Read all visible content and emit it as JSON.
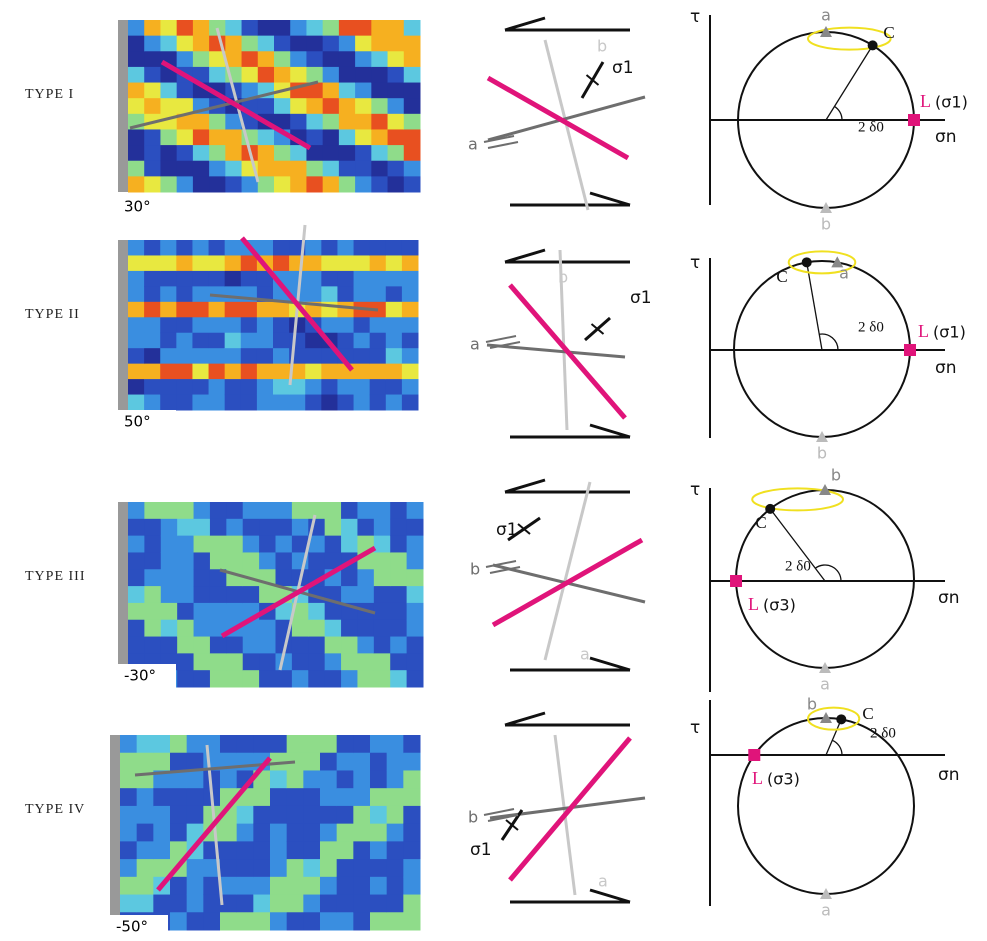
{
  "rows": [
    {
      "label": "TYPE I",
      "angle": "30°",
      "sketch": {
        "sigma": "σ1",
        "gray_label": "a",
        "light_label": "b"
      },
      "mohr": {
        "tau": "τ",
        "sigma_n": "σn",
        "c": "C",
        "top": "a",
        "bottom": "b",
        "angle": "2 δ0",
        "l": "L",
        "l_note": "(σ1)"
      }
    },
    {
      "label": "TYPE II",
      "angle": "50°",
      "sketch": {
        "sigma": "σ1",
        "gray_label": "a",
        "light_label": "b"
      },
      "mohr": {
        "tau": "τ",
        "sigma_n": "σn",
        "c": "C",
        "top": "a",
        "bottom": "b",
        "angle": "2 δ0",
        "l": "L",
        "l_note": "(σ1)"
      }
    },
    {
      "label": "TYPE III",
      "angle": "-30°",
      "sketch": {
        "sigma": "σ1",
        "gray_label": "b",
        "light_label": "a"
      },
      "mohr": {
        "tau": "τ",
        "sigma_n": "σn",
        "c": "C",
        "top": "b",
        "bottom": "a",
        "angle": "2 δ0",
        "l": "L",
        "l_note": "(σ3)"
      }
    },
    {
      "label": "TYPE IV",
      "angle": "-50°",
      "sketch": {
        "sigma": "σ1",
        "gray_label": "b",
        "light_label": "a"
      },
      "mohr": {
        "tau": "τ",
        "sigma_n": "σn",
        "c": "C",
        "top": "b",
        "bottom": "a",
        "angle": "2 δ0",
        "l": "L",
        "l_note": "(σ3)"
      }
    }
  ]
}
